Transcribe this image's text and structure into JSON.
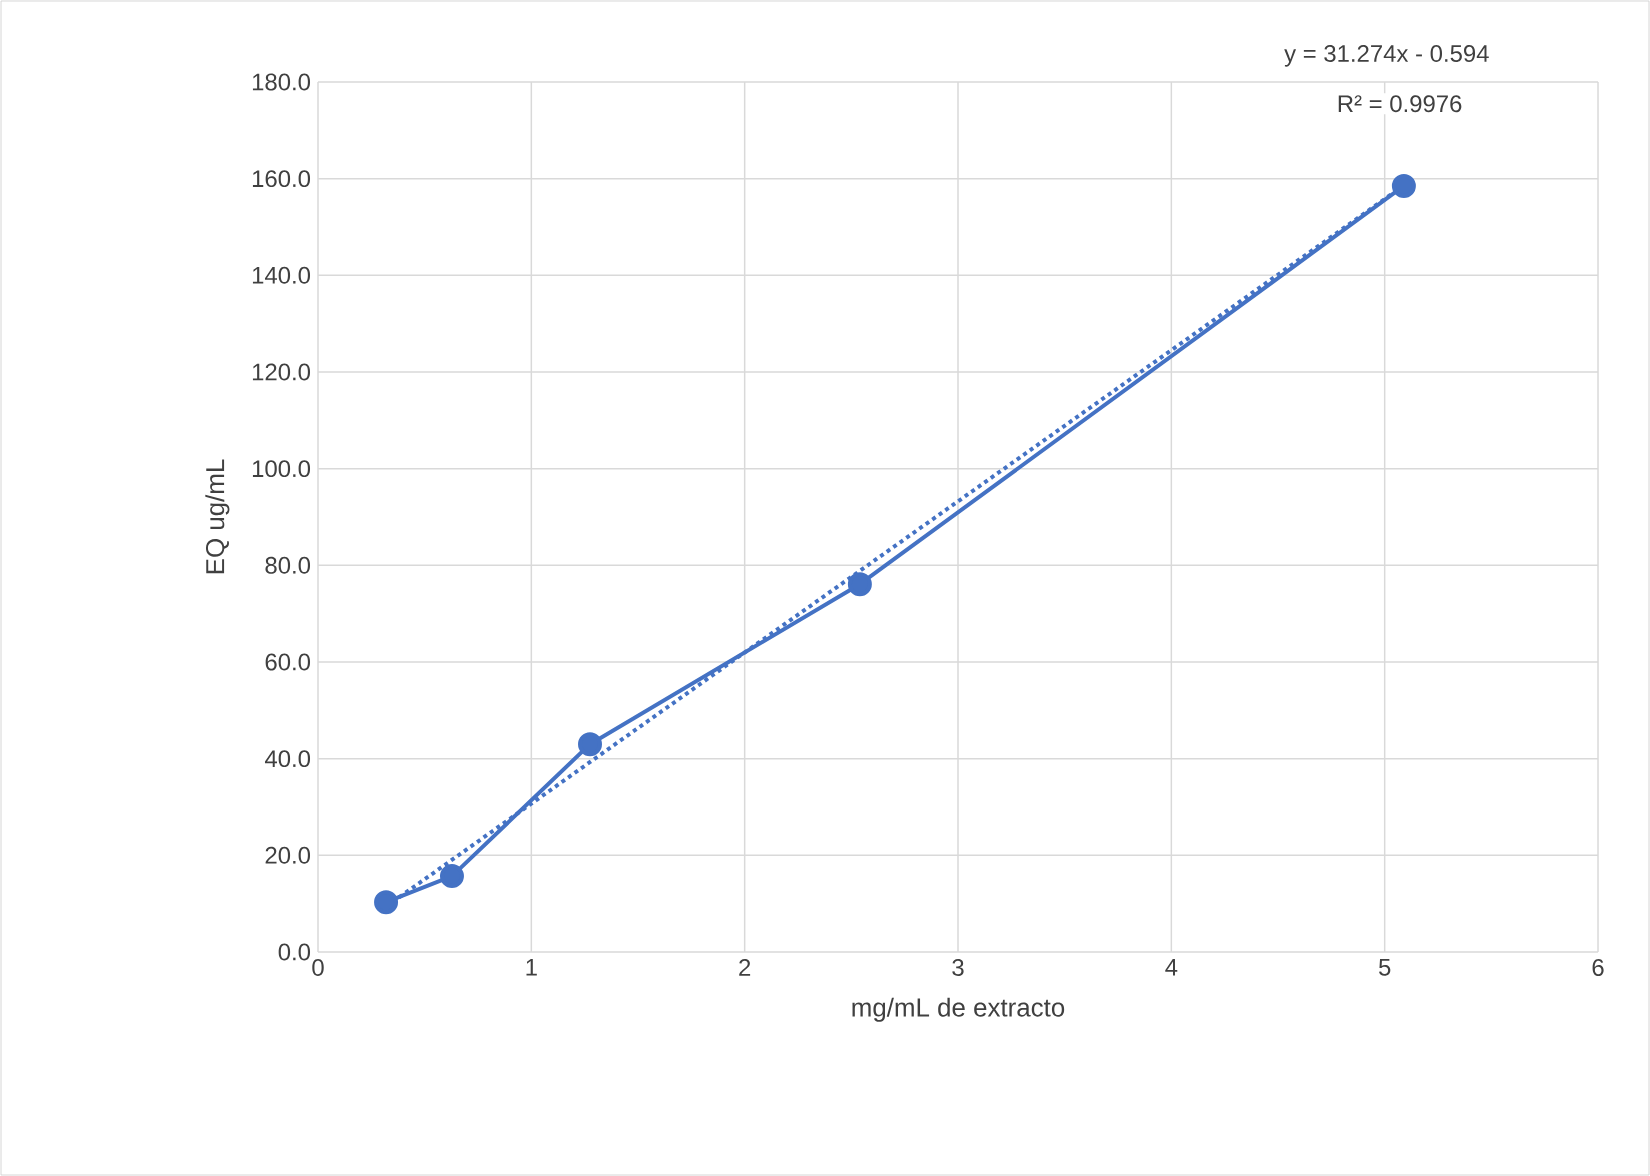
{
  "chart_data": {
    "type": "line",
    "xlabel": "mg/mL de extracto",
    "ylabel": "EQ ug/mL",
    "series": [
      {
        "color": "#4472c4",
        "marker": "circle",
        "line_style": "solid",
        "x": [
          0.319,
          0.628,
          1.275,
          2.54,
          5.09
        ],
        "values": [
          10.3,
          15.7,
          43.0,
          76.1,
          158.5
        ]
      },
      {
        "color": "#4472c4",
        "marker": "none",
        "line_style": "dotted",
        "x": [
          0.319,
          5.09
        ],
        "values": [
          9.4,
          158.6
        ]
      }
    ],
    "xlim": [
      0,
      6
    ],
    "ylim": [
      0,
      180
    ],
    "xticks": [
      0,
      1,
      2,
      3,
      4,
      5,
      6
    ],
    "yticks": [
      {
        "value": 0,
        "label": "0.0"
      },
      {
        "value": 20,
        "label": "20.0"
      },
      {
        "value": 40,
        "label": "40.0"
      },
      {
        "value": 60,
        "label": "60.0"
      },
      {
        "value": 80,
        "label": "80.0"
      },
      {
        "value": 100,
        "label": "100.0"
      },
      {
        "value": 120,
        "label": "120.0"
      },
      {
        "value": 140,
        "label": "140.0"
      },
      {
        "value": 160,
        "label": "160.0"
      },
      {
        "value": 180,
        "label": "180.0"
      }
    ],
    "grid": true,
    "annotations": [
      "y = 31.274x - 0.594",
      "R² = 0.9976"
    ]
  }
}
